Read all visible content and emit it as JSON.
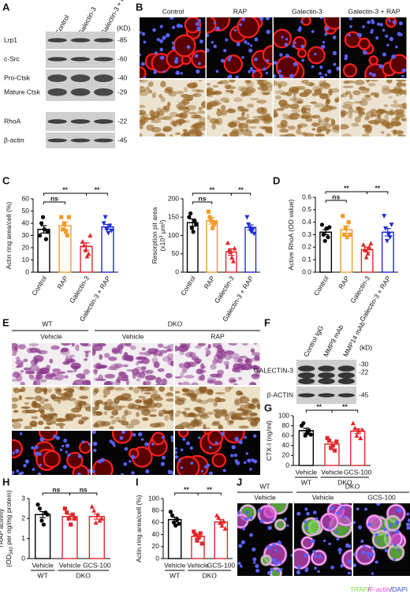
{
  "panel_labels": [
    "A",
    "B",
    "C",
    "D",
    "E",
    "F",
    "G",
    "H",
    "I",
    "J"
  ],
  "panel_a": {
    "columns": [
      "Control",
      "Galectin-3",
      "Galectin-3 + RAP"
    ],
    "unit": "(KD)",
    "rows": [
      {
        "label": "Lrp1",
        "kd": "-85"
      },
      {
        "label": "c-Src",
        "kd": "-60"
      },
      {
        "label": "Pro-Ctsk",
        "kd": "-40"
      },
      {
        "label": "Mature Ctsk",
        "kd": "-29"
      },
      {
        "label": "RhoA",
        "kd": "-22"
      },
      {
        "label": "β-actin",
        "kd": "-45"
      }
    ]
  },
  "panel_b": {
    "columns": [
      "Control",
      "RAP",
      "Galectin-3",
      "Galectin-3 + RAP"
    ]
  },
  "panel_e": {
    "groups": [
      "WT",
      "DKO"
    ],
    "columns": [
      "Vehicle",
      "Vehicle",
      "RAP"
    ]
  },
  "panel_f": {
    "columns": [
      "Control IgG",
      "MMP9 mAb",
      "MMP14 mAb"
    ],
    "unit": "(kD)",
    "rows": [
      {
        "label": "GALECTIN-3",
        "kd": [
          "-30",
          "-22"
        ]
      },
      {
        "label": "β-ACTIN",
        "kd": [
          "-45"
        ]
      }
    ]
  },
  "panel_j": {
    "groups": [
      "WT",
      "DKO"
    ],
    "columns": [
      "Vehicle",
      "Vehicle",
      "GCS-100"
    ],
    "legend": [
      {
        "text": "TRAP",
        "color": "#7ee04a"
      },
      {
        "text": "/",
        "color": "#222222"
      },
      {
        "text": "F-actin",
        "color": "#e040e0"
      },
      {
        "text": "/",
        "color": "#222222"
      },
      {
        "text": "DAPI",
        "color": "#3a4fd8"
      }
    ]
  },
  "chart_data": [
    {
      "type": "bar",
      "ylabel": [
        [
          "Actin ring area/cell (%)"
        ]
      ],
      "categories": [
        "Control",
        "RAP",
        "Galectin-3",
        "Galectin-3 + RAP"
      ],
      "colors": [
        "#000000",
        "#f39c2b",
        "#e3262b",
        "#1f2bd6"
      ],
      "markers": [
        "circle",
        "square",
        "triangle",
        "triangle-down"
      ],
      "values": [
        35,
        38,
        21,
        37
      ],
      "errors": [
        3,
        3,
        3,
        2
      ],
      "points": [
        [
          30,
          40,
          45,
          35,
          27,
          33
        ],
        [
          45,
          35,
          40,
          33,
          30,
          45
        ],
        [
          25,
          22,
          18,
          13,
          15,
          30
        ],
        [
          40,
          45,
          35,
          32,
          38,
          34
        ]
      ],
      "ylim": [
        0,
        60
      ],
      "yticks": [
        0,
        10,
        20,
        30,
        40,
        50,
        60
      ],
      "rotate_categories": true,
      "significance": [
        {
          "from": 0,
          "to": 1,
          "label": "ns"
        },
        {
          "from": 0,
          "to": 2,
          "label": "**"
        },
        {
          "from": 2,
          "to": 3,
          "label": "**"
        }
      ]
    },
    {
      "type": "bar",
      "ylabel": [
        [
          "Resorption pit area"
        ],
        [
          "(x10",
          {
            "sup": "3"
          },
          " μm²)"
        ]
      ],
      "categories": [
        "Control",
        "RAP",
        "Galectin-3",
        "Galectin-3 + RAP"
      ],
      "colors": [
        "#000000",
        "#f39c2b",
        "#e3262b",
        "#1f2bd6"
      ],
      "markers": [
        "circle",
        "square",
        "triangle",
        "triangle-down"
      ],
      "values": [
        135,
        140,
        55,
        122
      ],
      "errors": [
        10,
        9,
        9,
        7
      ],
      "points": [
        [
          150,
          160,
          120,
          110,
          140,
          130
        ],
        [
          165,
          150,
          140,
          120,
          130,
          135
        ],
        [
          80,
          60,
          55,
          40,
          30,
          65
        ],
        [
          150,
          130,
          120,
          110,
          115,
          105
        ]
      ],
      "ylim": [
        0,
        200
      ],
      "yticks": [
        0,
        50,
        100,
        150,
        200
      ],
      "rotate_categories": true,
      "significance": [
        {
          "from": 0,
          "to": 1,
          "label": "ns"
        },
        {
          "from": 0,
          "to": 2,
          "label": "**"
        },
        {
          "from": 2,
          "to": 3,
          "label": "**"
        }
      ]
    },
    {
      "type": "bar",
      "ylabel": [
        [
          "Active RhoA (OD value)"
        ]
      ],
      "categories": [
        "Control",
        "RAP",
        "Galectin-3",
        "Galectin-3 + RAP"
      ],
      "colors": [
        "#000000",
        "#f39c2b",
        "#e3262b",
        "#1f2bd6"
      ],
      "markers": [
        "circle",
        "square",
        "triangle",
        "triangle-down"
      ],
      "values": [
        0.32,
        0.34,
        0.18,
        0.32
      ],
      "errors": [
        0.02,
        0.03,
        0.02,
        0.03
      ],
      "points": [
        [
          0.38,
          0.3,
          0.25,
          0.35,
          0.28,
          0.36
        ],
        [
          0.45,
          0.3,
          0.35,
          0.28,
          0.4,
          0.3
        ],
        [
          0.22,
          0.18,
          0.12,
          0.15,
          0.2,
          0.23
        ],
        [
          0.45,
          0.35,
          0.25,
          0.3,
          0.28,
          0.38
        ]
      ],
      "ylim": [
        0,
        0.6
      ],
      "yticks": [
        {
          "value": 0,
          "label": "0.0"
        },
        0.1,
        0.2,
        0.3,
        0.4,
        0.5,
        0.6
      ],
      "rotate_categories": true,
      "significance": [
        {
          "from": 0,
          "to": 1,
          "label": "ns"
        },
        {
          "from": 0,
          "to": 2,
          "label": "**"
        },
        {
          "from": 2,
          "to": 3,
          "label": "**"
        }
      ]
    },
    {
      "type": "bar",
      "ylabel": [
        [
          "CTX-I (ng/ml)"
        ]
      ],
      "categories": [
        "Vehicle",
        "Vehicle",
        "GCS-100"
      ],
      "groups": [
        {
          "label": "WT",
          "span": [
            0,
            0
          ]
        },
        {
          "label": "DKO",
          "span": [
            1,
            2
          ]
        }
      ],
      "colors": [
        "#000000",
        "#e3262b",
        "#e3262b"
      ],
      "markers": [
        "circle",
        "square",
        "triangle"
      ],
      "values": [
        70,
        43,
        69
      ],
      "errors": [
        5,
        4,
        5
      ],
      "points": [
        [
          80,
          85,
          60,
          65,
          70,
          62
        ],
        [
          55,
          50,
          35,
          40,
          30,
          48
        ],
        [
          85,
          75,
          60,
          70,
          55,
          72
        ]
      ],
      "ylim": [
        0,
        100
      ],
      "yticks": [
        0,
        20,
        40,
        60,
        80,
        100
      ],
      "rotate_categories": false,
      "significance": [
        {
          "from": 0,
          "to": 1,
          "label": "**"
        },
        {
          "from": 1,
          "to": 2,
          "label": "**"
        }
      ]
    },
    {
      "type": "bar",
      "ylabel": [
        [
          "TRAP activity"
        ],
        [
          "(OD",
          {
            "sub": "540"
          },
          " per ng/mg protein)"
        ]
      ],
      "categories": [
        "Vehicle",
        "Vehicle",
        "GCS-100"
      ],
      "groups": [
        {
          "label": "WT",
          "span": [
            0,
            0
          ]
        },
        {
          "label": "DKO",
          "span": [
            1,
            2
          ]
        }
      ],
      "colors": [
        "#000000",
        "#e3262b",
        "#e3262b"
      ],
      "markers": [
        "circle",
        "square",
        "triangle"
      ],
      "values": [
        2.2,
        2.1,
        2.1
      ],
      "errors": [
        0.15,
        0.12,
        0.13
      ],
      "points": [
        [
          2.7,
          2.5,
          1.9,
          1.7,
          2.3,
          2.2
        ],
        [
          2.5,
          2.3,
          2.0,
          1.7,
          2.2,
          2.0
        ],
        [
          2.6,
          2.4,
          1.8,
          2.2,
          1.9,
          2.0
        ]
      ],
      "ylim": [
        0,
        3
      ],
      "yticks": [
        0,
        1,
        2,
        3
      ],
      "rotate_categories": false,
      "significance": [
        {
          "from": 0,
          "to": 1,
          "label": "ns"
        },
        {
          "from": 1,
          "to": 2,
          "label": "ns"
        }
      ]
    },
    {
      "type": "bar",
      "ylabel": [
        [
          "Actin ring area/cell (%)"
        ]
      ],
      "categories": [
        "Vehicle",
        "Vehicle",
        "GCS-100"
      ],
      "groups": [
        {
          "label": "WT",
          "span": [
            0,
            0
          ]
        },
        {
          "label": "DKO",
          "span": [
            1,
            2
          ]
        }
      ],
      "colors": [
        "#000000",
        "#e3262b",
        "#e3262b"
      ],
      "markers": [
        "circle",
        "square",
        "triangle"
      ],
      "values": [
        65,
        37,
        61
      ],
      "errors": [
        4,
        3,
        4
      ],
      "points": [
        [
          78,
          72,
          60,
          55,
          65,
          58
        ],
        [
          45,
          40,
          30,
          35,
          42,
          25
        ],
        [
          72,
          68,
          60,
          55,
          62,
          50
        ]
      ],
      "ylim": [
        0,
        100
      ],
      "yticks": [
        0,
        20,
        40,
        60,
        80,
        100
      ],
      "rotate_categories": false,
      "significance": [
        {
          "from": 0,
          "to": 1,
          "label": "**"
        },
        {
          "from": 1,
          "to": 2,
          "label": "**"
        }
      ]
    }
  ]
}
